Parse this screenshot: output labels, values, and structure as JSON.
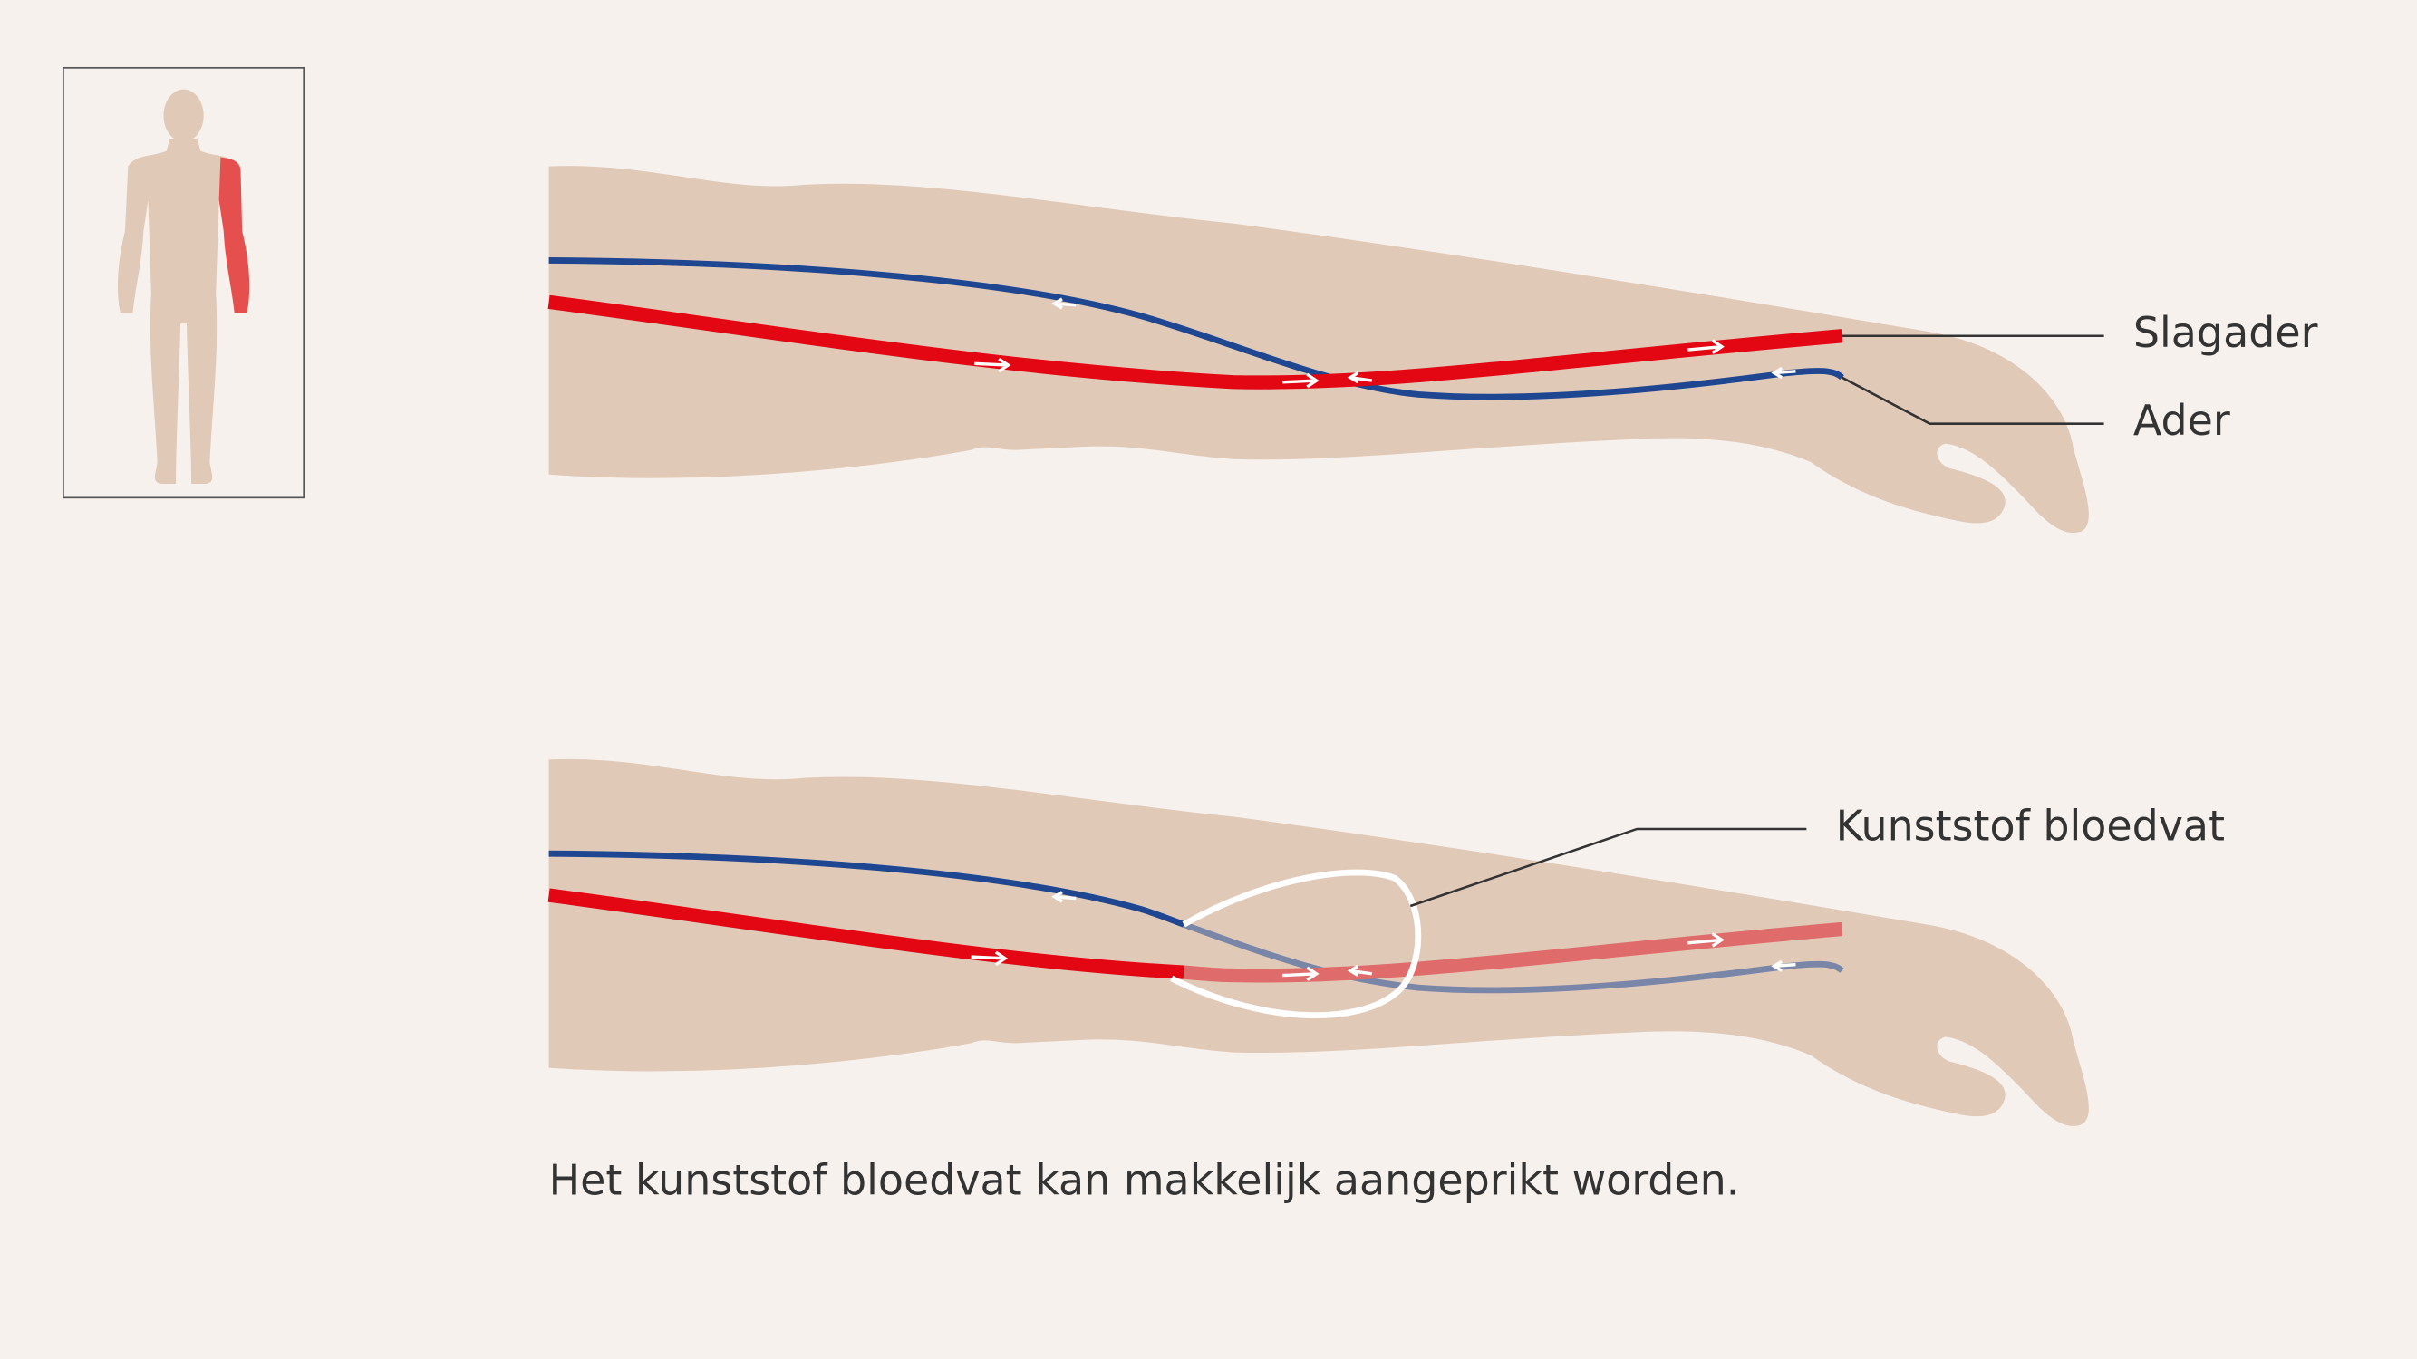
{
  "labels": {
    "artery": "Slagader",
    "vein": "Ader",
    "graft": "Kunststof bloedvat"
  },
  "caption": "Het kunststof bloedvat kan makkelijk aangeprikt worden."
}
